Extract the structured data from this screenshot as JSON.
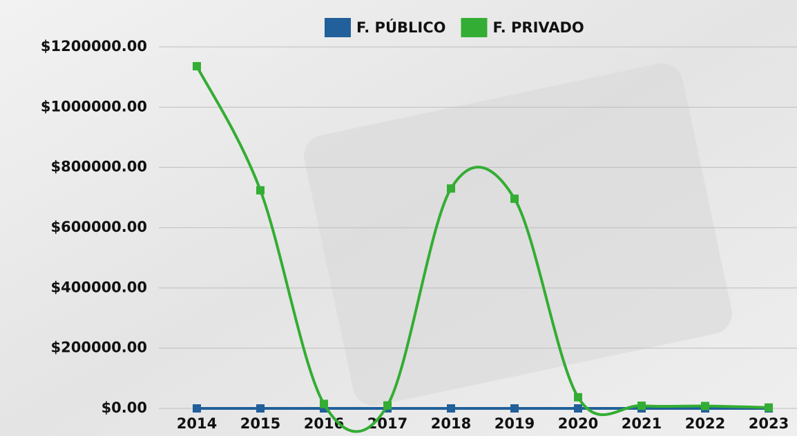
{
  "chart_data": {
    "type": "line",
    "categories": [
      "2014",
      "2015",
      "2016",
      "2017",
      "2018",
      "2019",
      "2020",
      "2021",
      "2022",
      "2023"
    ],
    "series": [
      {
        "name": "F. PÚBLICO",
        "color": "#21609a",
        "values": [
          0,
          0,
          0,
          0,
          0,
          0,
          0,
          0,
          0,
          0
        ]
      },
      {
        "name": "F. PRIVADO",
        "color": "#33ad33",
        "values": [
          1136000,
          724000,
          15000,
          10000,
          730000,
          696000,
          37000,
          9000,
          8000,
          3000
        ]
      }
    ],
    "ylim": [
      0,
      1200000
    ],
    "yticks": [
      {
        "value": 0,
        "label": "$0.00"
      },
      {
        "value": 200000,
        "label": "$200000.00"
      },
      {
        "value": 400000,
        "label": "$400000.00"
      },
      {
        "value": 600000,
        "label": "$600000.00"
      },
      {
        "value": 800000,
        "label": "$800000.00"
      },
      {
        "value": 1000000,
        "label": "$1000000.00"
      },
      {
        "value": 1200000,
        "label": "$1200000.00"
      }
    ],
    "grid": true,
    "legend": "top"
  }
}
